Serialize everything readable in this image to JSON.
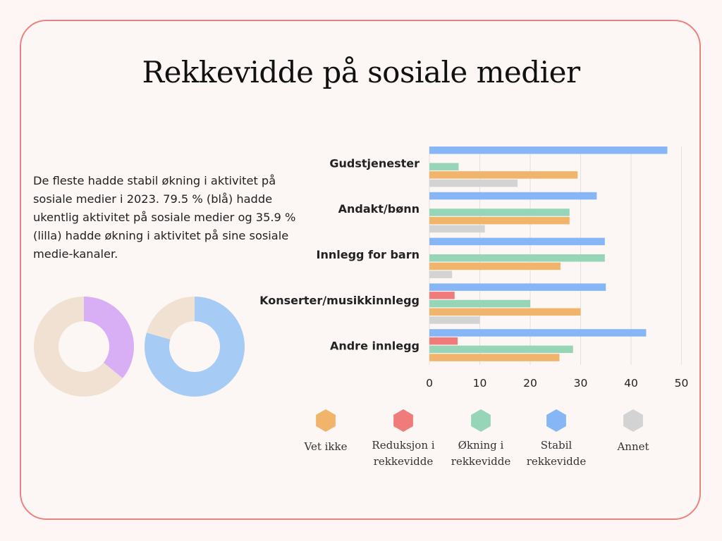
{
  "title": "Rekkevidde på sosiale medier",
  "description": "De fleste hadde stabil økning i aktivitet på sosiale medier i 2023. 79.5 % (blå) hadde ukentlig aktivitet på sosiale medier og 35.9 % (lilla) hadde økning i aktivitet på sine sosiale medie-kanaler.",
  "donuts": [
    {
      "value_percent": 35.9,
      "color": "#d8aef5",
      "rest_color": "#f0e1d2"
    },
    {
      "value_percent": 79.5,
      "color": "#a6cbf5",
      "rest_color": "#f0e1d2"
    }
  ],
  "chart_data": {
    "type": "bar",
    "orientation": "horizontal",
    "categories": [
      "Gudstjenester",
      "Andakt/bønn",
      "Innlegg for barn",
      "Konserter/musikkinnlegg",
      "Andre innlegg"
    ],
    "series": [
      {
        "name": "Stabil rekkevidde",
        "color": "#86b6f5",
        "values": [
          47.2,
          33.2,
          34.8,
          35,
          43
        ]
      },
      {
        "name": "Reduksjon i rekkevidde",
        "color": "#f07b7b",
        "values": [
          0,
          0,
          0,
          5,
          5.6
        ]
      },
      {
        "name": "Økning i rekkevidde",
        "color": "#97d5b8",
        "values": [
          5.8,
          27.8,
          34.8,
          20,
          28.5
        ]
      },
      {
        "name": "Vet ikke",
        "color": "#f0b56a",
        "values": [
          29.4,
          27.8,
          26,
          30,
          25.8
        ]
      },
      {
        "name": "Annet",
        "color": "#d3d3d3",
        "values": [
          17.5,
          11,
          4.5,
          10,
          0
        ]
      }
    ],
    "xlim": [
      0,
      50
    ],
    "xticks": [
      "0",
      "10",
      "20",
      "30",
      "40",
      "50"
    ],
    "grid": true,
    "legend_position": "bottom"
  },
  "legend": [
    {
      "label_lines": [
        "Vet ikke"
      ],
      "color": "#f0b56a"
    },
    {
      "label_lines": [
        "Reduksjon i",
        "rekkevidde"
      ],
      "color": "#f07b7b"
    },
    {
      "label_lines": [
        "Økning i",
        "rekkevidde"
      ],
      "color": "#97d5b8"
    },
    {
      "label_lines": [
        "Stabil",
        "rekkevidde"
      ],
      "color": "#86b6f5"
    },
    {
      "label_lines": [
        "Annet"
      ],
      "color": "#d3d3d3"
    }
  ]
}
